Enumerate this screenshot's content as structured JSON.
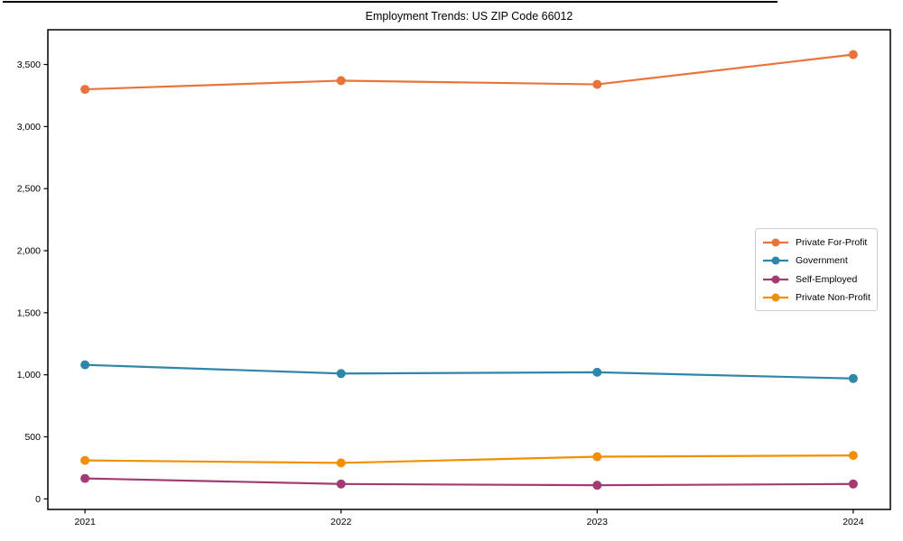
{
  "figure": {
    "title": "Employment Trends: US ZIP Code 66012"
  },
  "chart_data": {
    "type": "line",
    "title": "Employment Trends: US ZIP Code 66012",
    "xlabel": "",
    "ylabel": "",
    "x": [
      2021,
      2022,
      2023,
      2024
    ],
    "categories": [
      "2021",
      "2022",
      "2023",
      "2024"
    ],
    "series": [
      {
        "name": "Private For-Profit",
        "color": "#E8743B",
        "values": [
          3300,
          3370,
          3340,
          3580
        ]
      },
      {
        "name": "Government",
        "color": "#2E86AB",
        "values": [
          1080,
          1010,
          1020,
          970
        ]
      },
      {
        "name": "Self-Employed",
        "color": "#A23B72",
        "values": [
          165,
          120,
          110,
          120
        ]
      },
      {
        "name": "Private Non-Profit",
        "color": "#F18F01",
        "values": [
          310,
          290,
          340,
          350
        ]
      }
    ],
    "xlim": [
      2020.855,
      2024.145
    ],
    "ylim": [
      -85,
      3780
    ],
    "yticks": [
      0,
      500,
      1000,
      1500,
      2000,
      2500,
      3000,
      3500
    ],
    "ytick_labels": [
      "0",
      "500",
      "1,000",
      "1,500",
      "2,000",
      "2,500",
      "3,000",
      "3,500"
    ],
    "grid": false,
    "legend_position": "center-right",
    "marker": "circle",
    "marker_radius": 5,
    "line_width": 2.2
  }
}
